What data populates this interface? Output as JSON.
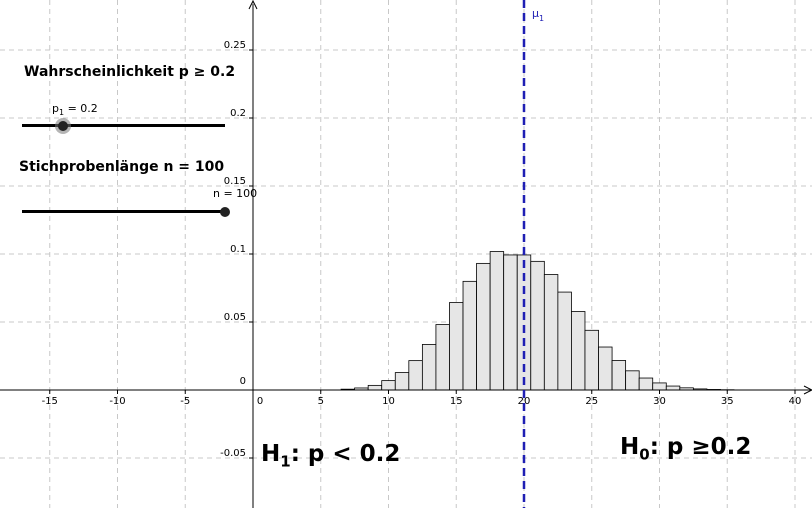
{
  "chart_data": {
    "type": "bar",
    "title": "",
    "xlabel": "",
    "ylabel": "",
    "xlim": [
      -19,
      41
    ],
    "ylim": [
      -0.09,
      0.285
    ],
    "grid": true,
    "x_ticks": [
      -15,
      -10,
      -5,
      0,
      5,
      10,
      15,
      20,
      25,
      30,
      35,
      40
    ],
    "x_tick_labels": [
      "-15",
      "-10",
      "-5",
      "0",
      "5",
      "10",
      "15",
      "20",
      "25",
      "30",
      "35",
      "40"
    ],
    "y_ticks": [
      -0.05,
      0,
      0.05,
      0.1,
      0.15,
      0.2,
      0.25
    ],
    "y_tick_labels": [
      "-0.05",
      "0",
      "0.05",
      "0.1",
      "0.15",
      "0.2",
      "0.25"
    ],
    "categories": [
      7,
      8,
      9,
      10,
      11,
      12,
      13,
      14,
      15,
      16,
      17,
      18,
      19,
      20,
      21,
      22,
      23,
      24,
      25,
      26,
      27,
      28,
      29,
      30,
      31,
      32,
      33,
      34,
      35
    ],
    "values": [
      0.0006,
      0.0015,
      0.0034,
      0.0069,
      0.0128,
      0.0216,
      0.0335,
      0.0481,
      0.0643,
      0.0799,
      0.0931,
      0.1018,
      0.0993,
      0.0993,
      0.0946,
      0.0849,
      0.072,
      0.0577,
      0.0439,
      0.0316,
      0.0217,
      0.0141,
      0.0088,
      0.0052,
      0.0029,
      0.0016,
      0.0008,
      0.0004,
      0.0002
    ],
    "mean_line": {
      "x": 20,
      "label": "μ",
      "label_sub": "1",
      "color": "#1f1fb4"
    },
    "bar_fill": "#e6e6e6",
    "bar_stroke": "#000000"
  },
  "controls": {
    "probability": {
      "title": "Wahrscheinlichkeit p ≥ 0.2",
      "tag_base": "p",
      "tag_sub": "1",
      "tag_value": " = 0.2",
      "value": 0.2,
      "knob_fraction": 0.2
    },
    "sample_size": {
      "title": "Stichprobenlänge n = 100",
      "tag": "n = 100",
      "value": 100,
      "knob_fraction": 1.0
    }
  },
  "hypotheses": {
    "h1_base": "H",
    "h1_sub": "1",
    "h1_text": ": p < 0.2",
    "h0_base": "H",
    "h0_sub": "0",
    "h0_text": ": p ≥0.2"
  }
}
